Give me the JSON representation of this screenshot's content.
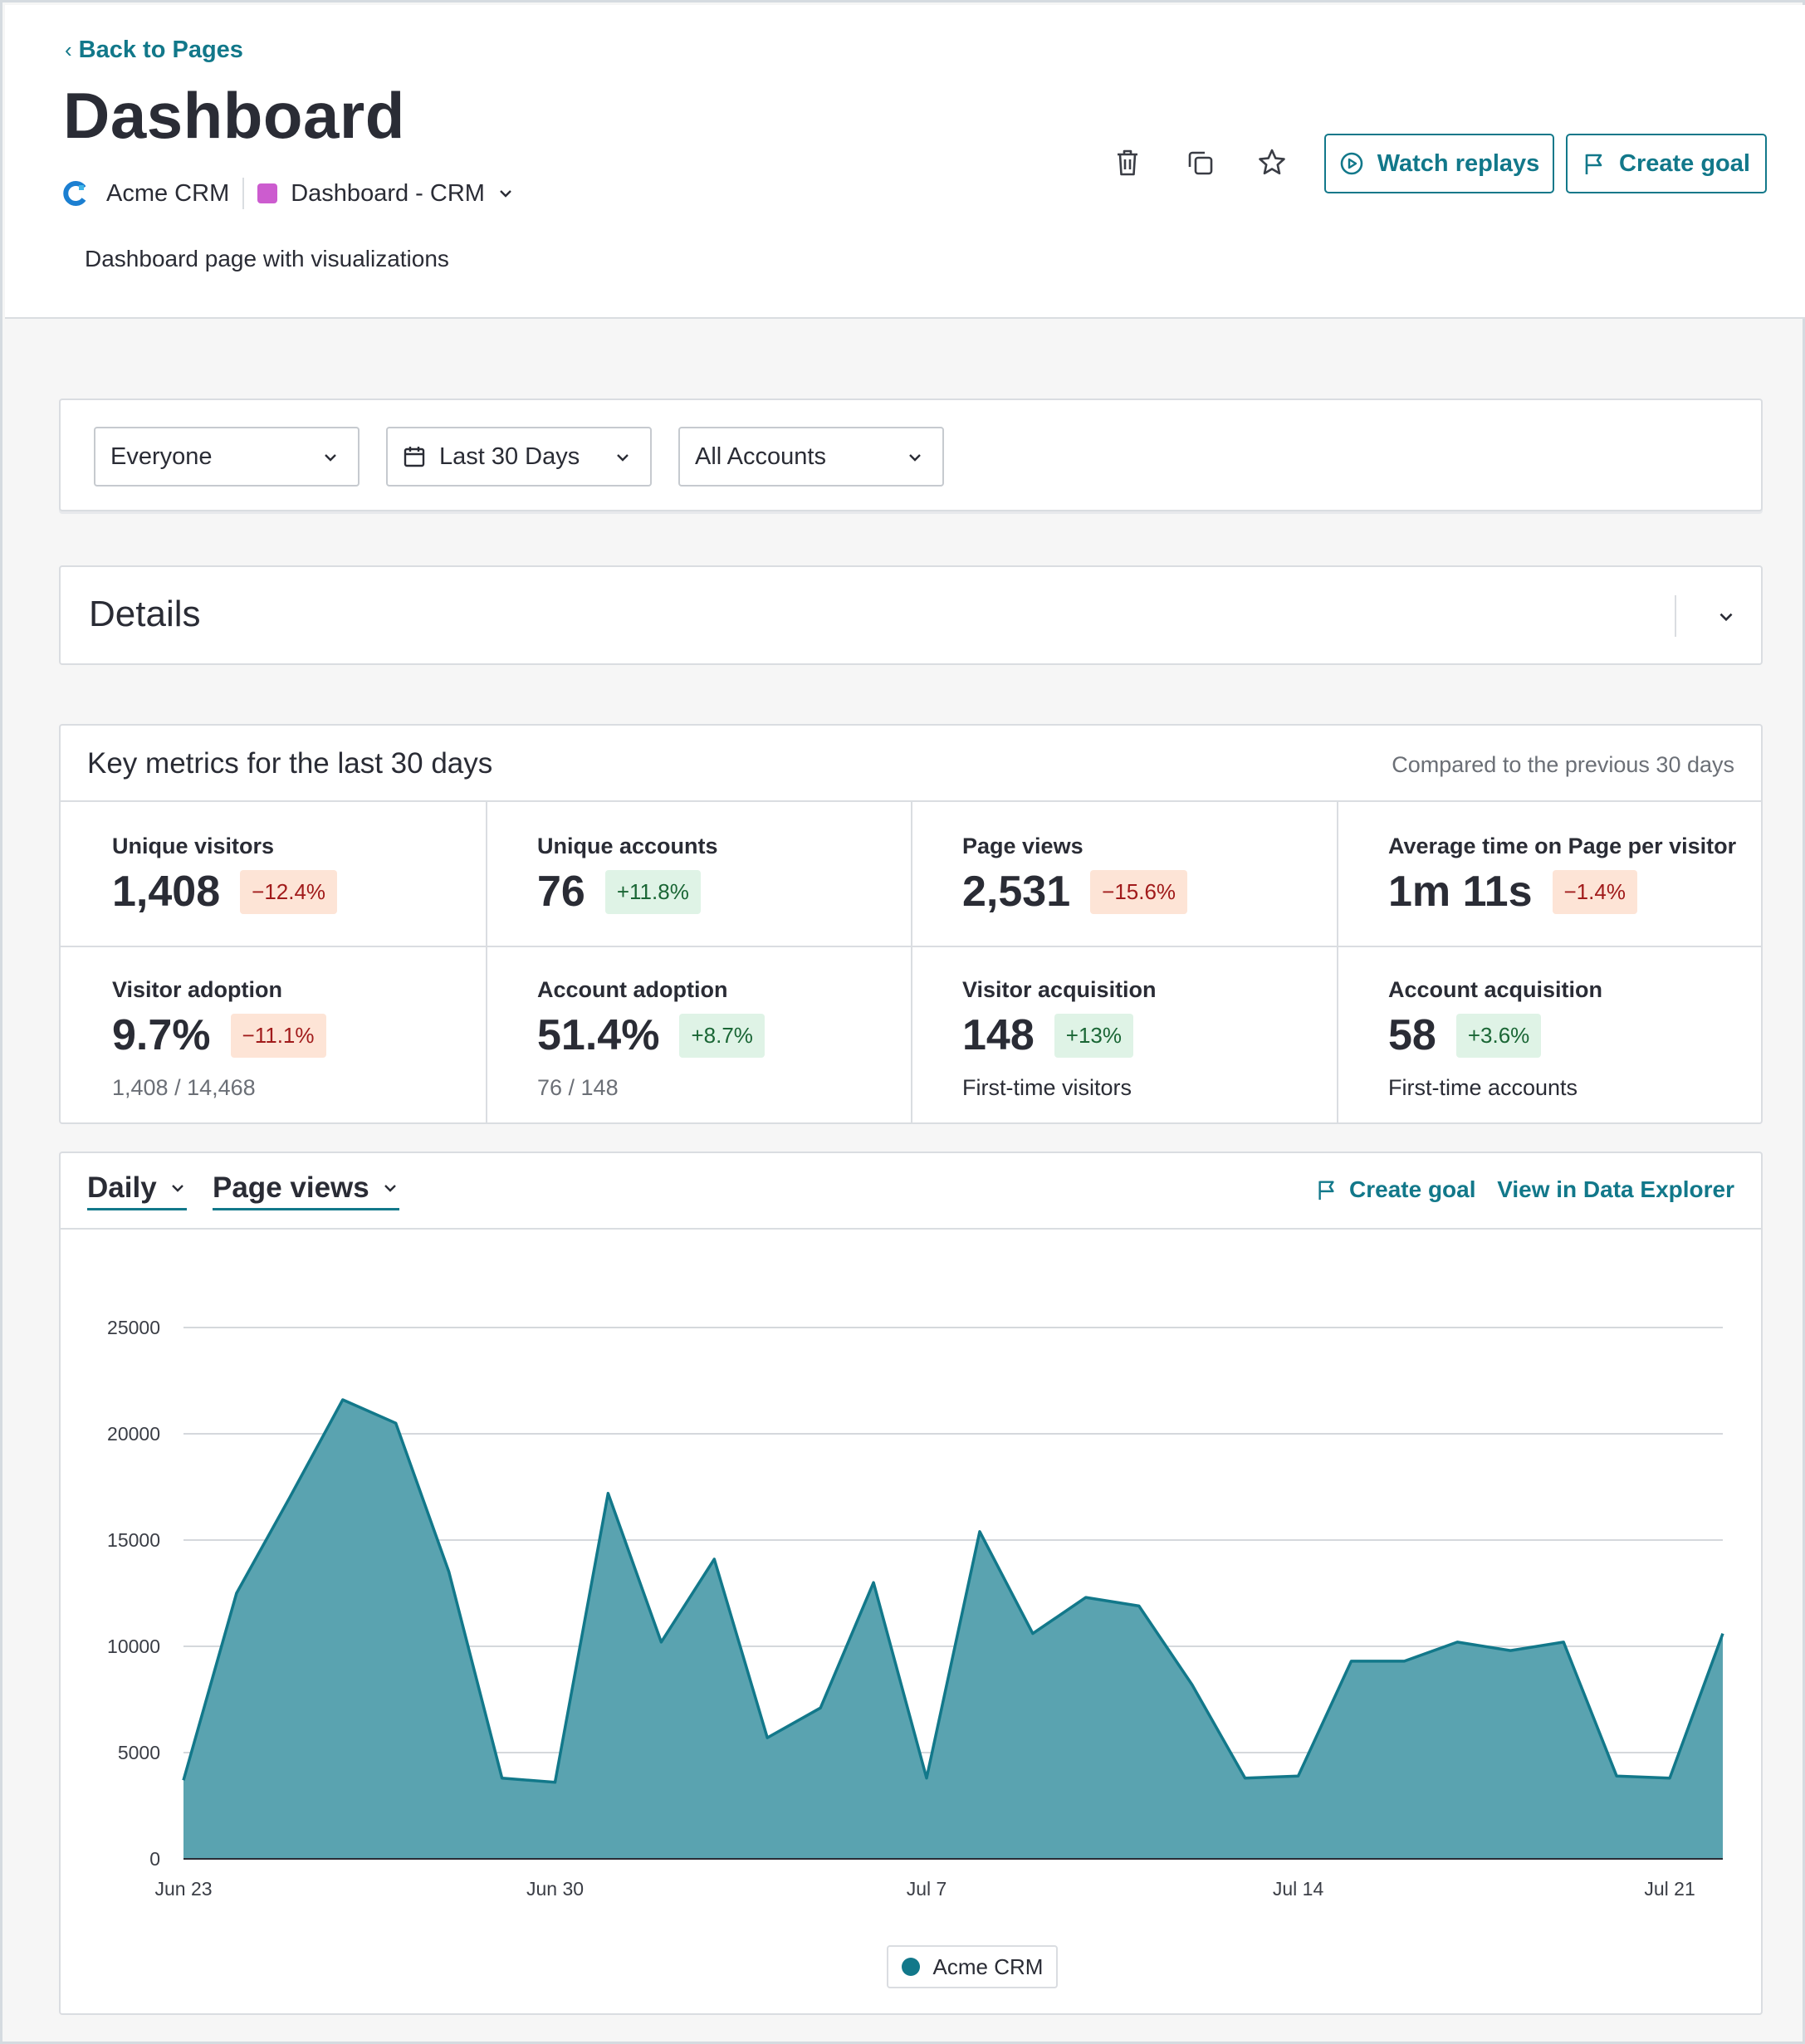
{
  "header": {
    "back_label": "Back to Pages",
    "title": "Dashboard",
    "app_name": "Acme CRM",
    "page_selector": "Dashboard - CRM",
    "description": "Dashboard page with visualizations",
    "actions": {
      "watch_replays": "Watch replays",
      "create_goal": "Create goal"
    }
  },
  "filters": {
    "segment": "Everyone",
    "date_range": "Last 30 Days",
    "accounts": "All Accounts"
  },
  "details": {
    "title": "Details"
  },
  "metrics": {
    "title": "Key metrics for the last 30 days",
    "compare_note": "Compared to the previous 30 days",
    "items": [
      {
        "label": "Unique visitors",
        "value": "1,408",
        "change": "−12.4%",
        "trend": "neg",
        "sub": ""
      },
      {
        "label": "Unique accounts",
        "value": "76",
        "change": "+11.8%",
        "trend": "pos",
        "sub": ""
      },
      {
        "label": "Page views",
        "value": "2,531",
        "change": "−15.6%",
        "trend": "neg",
        "sub": ""
      },
      {
        "label": "Average time on Page per visitor",
        "value": "1m 11s",
        "change": "−1.4%",
        "trend": "neg",
        "sub": ""
      },
      {
        "label": "Visitor adoption",
        "value": "9.7%",
        "change": "−11.1%",
        "trend": "neg",
        "sub": "1,408 / 14,468"
      },
      {
        "label": "Account adoption",
        "value": "51.4%",
        "change": "+8.7%",
        "trend": "pos",
        "sub": "76 / 148"
      },
      {
        "label": "Visitor acquisition",
        "value": "148",
        "change": "+13%",
        "trend": "pos",
        "sub": "First-time visitors"
      },
      {
        "label": "Account acquisition",
        "value": "58",
        "change": "+3.6%",
        "trend": "pos",
        "sub": "First-time accounts"
      }
    ]
  },
  "chart_controls": {
    "interval": "Daily",
    "measure": "Page views",
    "create_goal": "Create goal",
    "data_explorer": "View in Data Explorer"
  },
  "colors": {
    "accent": "#12788a",
    "area_fill": "#5aa3b0",
    "negative_badge": "#fde4d6",
    "positive_badge": "#dff3e6"
  },
  "chart_data": {
    "type": "area",
    "x": [
      "Jun 23",
      "Jun 24",
      "Jun 25",
      "Jun 26",
      "Jun 27",
      "Jun 28",
      "Jun 29",
      "Jun 30",
      "Jul 1",
      "Jul 2",
      "Jul 3",
      "Jul 4",
      "Jul 5",
      "Jul 6",
      "Jul 7",
      "Jul 8",
      "Jul 9",
      "Jul 10",
      "Jul 11",
      "Jul 12",
      "Jul 13",
      "Jul 14",
      "Jul 15",
      "Jul 16",
      "Jul 17",
      "Jul 18",
      "Jul 19",
      "Jul 20",
      "Jul 21",
      "Jul 22"
    ],
    "series": [
      {
        "name": "Acme CRM",
        "values": [
          3700,
          12500,
          17000,
          21600,
          20500,
          13500,
          3800,
          3600,
          17200,
          10200,
          14100,
          5700,
          7100,
          13000,
          3800,
          15400,
          10600,
          12300,
          11900,
          8200,
          3800,
          3900,
          9300,
          9300,
          10200,
          9800,
          10200,
          3900,
          3800,
          10600
        ]
      }
    ],
    "x_tick_labels": [
      "Jun 23",
      "Jun 30",
      "Jul 7",
      "Jul 14",
      "Jul 21"
    ],
    "y_ticks": [
      0,
      5000,
      10000,
      15000,
      20000,
      25000
    ],
    "ylim": [
      0,
      25000
    ],
    "title": "",
    "xlabel": "",
    "ylabel": "",
    "grid": true,
    "legend": "bottom-center"
  }
}
